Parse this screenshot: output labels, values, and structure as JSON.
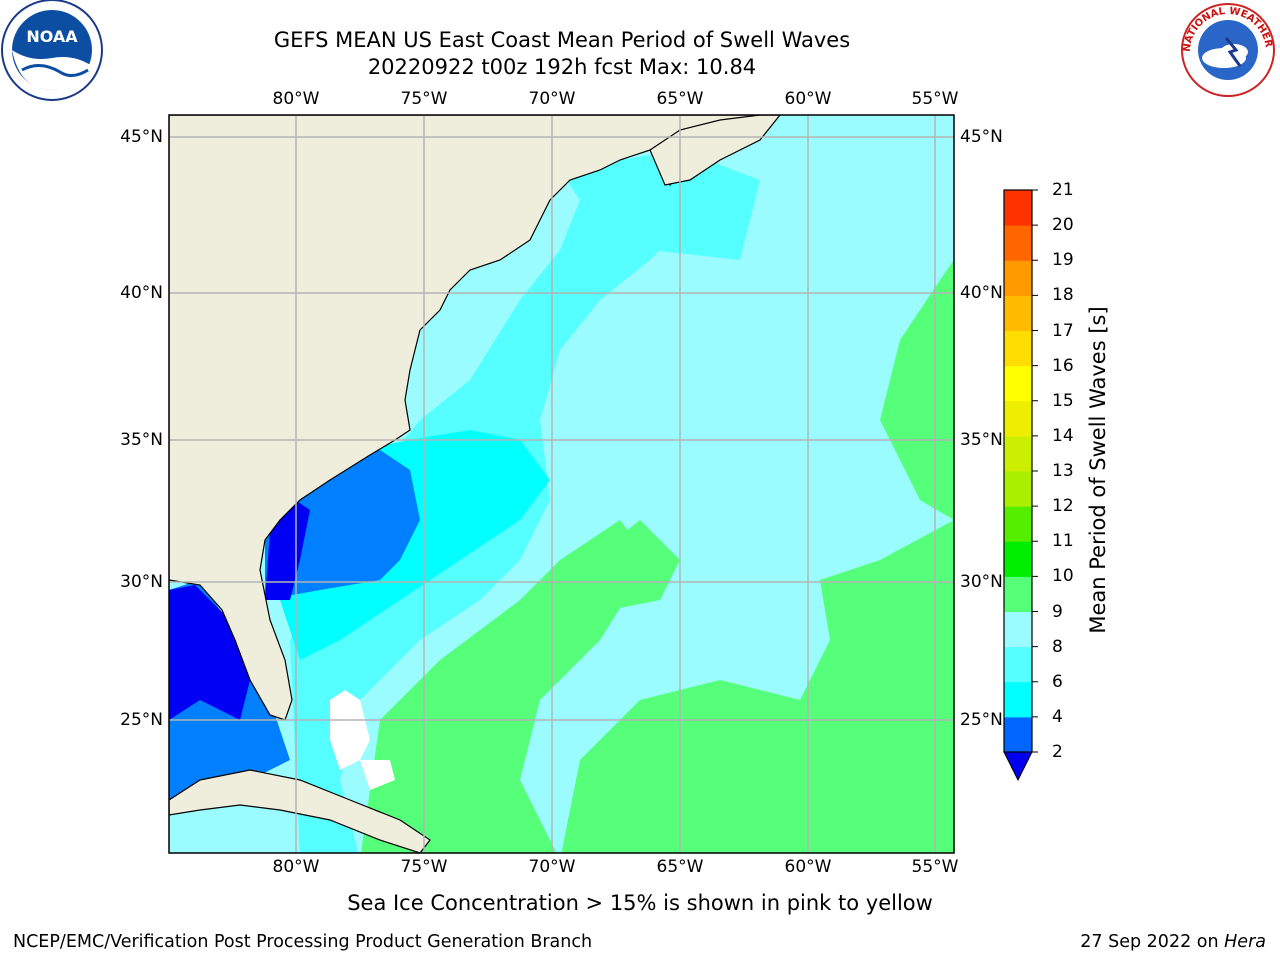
{
  "header": {
    "title_line1": "GEFS MEAN US East Coast Mean Period of Swell Waves",
    "title_line2": "20220922 t00z 192h fcst   Max: 10.84"
  },
  "map": {
    "lon_labels": [
      "80°W",
      "75°W",
      "70°W",
      "65°W",
      "60°W",
      "55°W"
    ],
    "lat_labels": [
      "45°N",
      "40°N",
      "35°N",
      "30°N",
      "25°N"
    ],
    "colors": {
      "land": "#efeedc",
      "ocean_lt4": "#0080ff",
      "ocean_lt2": "#0000f2",
      "ocean_4_6": "#00ffff",
      "ocean_6_8": "#55ffff",
      "ocean_8_9": "#9afcff",
      "ocean_9_10": "#55ff7a",
      "grid": "#b4b4b4"
    }
  },
  "colorbar": {
    "title": "Mean Period of Swell Waves [s]",
    "ticks": [
      "2",
      "4",
      "6",
      "8",
      "9",
      "10",
      "11",
      "12",
      "13",
      "14",
      "15",
      "16",
      "17",
      "18",
      "19",
      "20",
      "21"
    ],
    "colors": [
      "#0066ff",
      "#00ffff",
      "#55ffff",
      "#9afcff",
      "#55ff77",
      "#00ee00",
      "#55ee00",
      "#aaee00",
      "#ccee00",
      "#eeee00",
      "#ffff00",
      "#ffdd00",
      "#ffbb00",
      "#ff9900",
      "#ff6600",
      "#ff3300"
    ],
    "under_color": "#0000ee"
  },
  "note": "Sea Ice Concentration > 15% is shown in pink to yellow",
  "footer": {
    "left": "NCEP/EMC/Verification Post Processing Product Generation Branch",
    "right_prefix": "27 Sep 2022 on ",
    "right_italic": "Hera"
  },
  "logos": {
    "noaa_text": "NOAA",
    "nws_text": "NATIONAL WEATHER SERVICE"
  }
}
